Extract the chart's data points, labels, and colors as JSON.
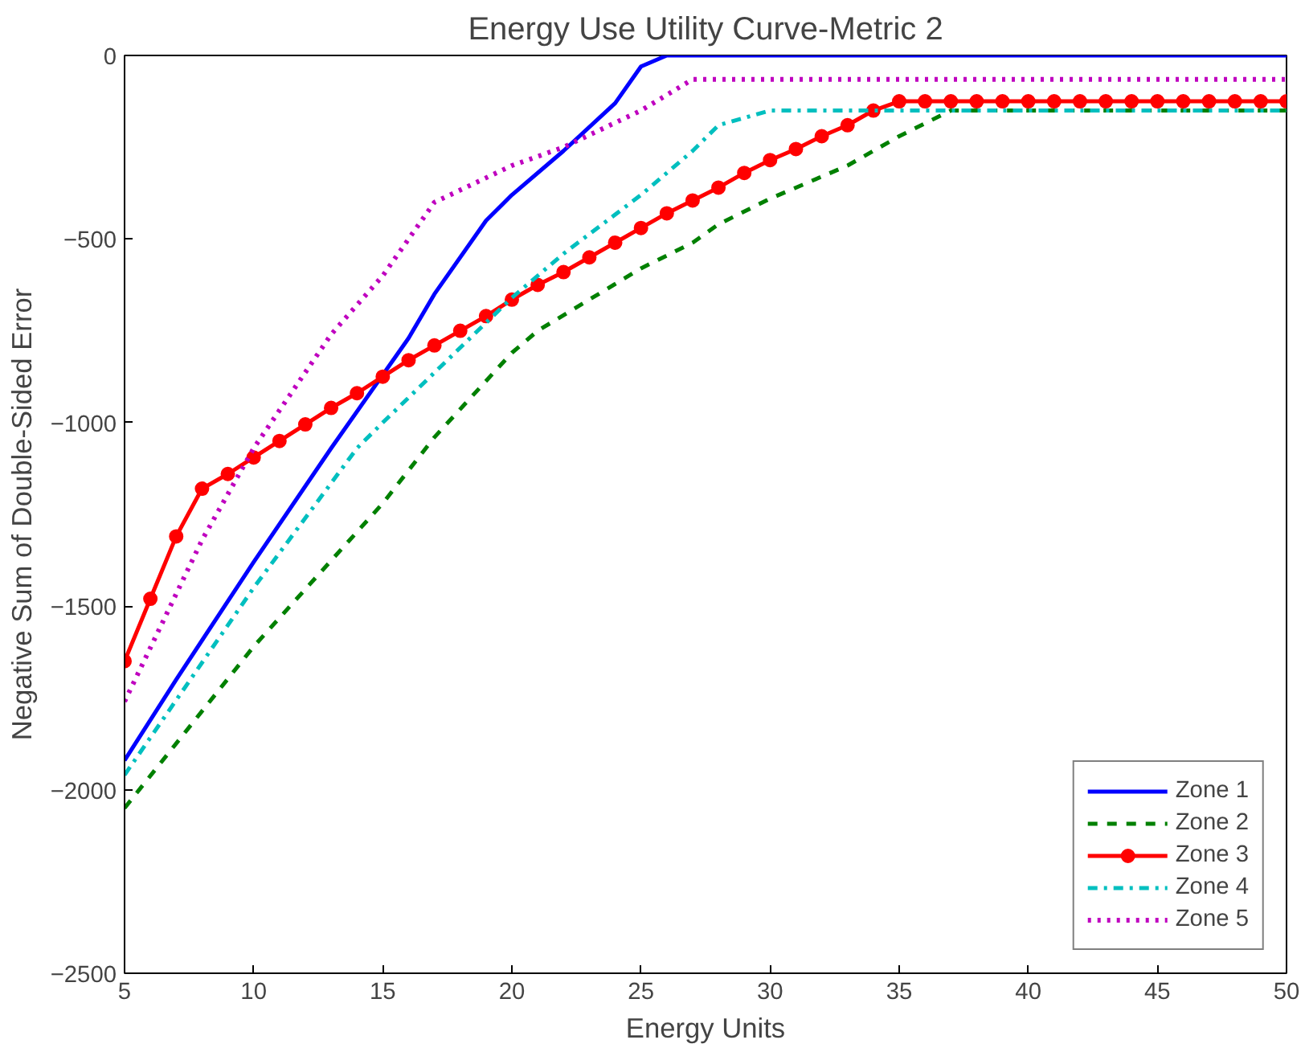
{
  "chart_data": {
    "type": "line",
    "title": "Energy Use Utility Curve-Metric 2",
    "xlabel": "Energy Units",
    "ylabel": "Negative Sum of Double-Sided Error",
    "xlim": [
      5,
      50
    ],
    "ylim": [
      -2500,
      0
    ],
    "xticks": [
      5,
      10,
      15,
      20,
      25,
      30,
      35,
      40,
      45,
      50
    ],
    "yticks": [
      -2500,
      -2000,
      -1500,
      -1000,
      -500,
      0
    ],
    "grid": false,
    "legend": "bottom right",
    "series": [
      {
        "name": "Zone 1",
        "color": "#0000ff",
        "line_style": "solid",
        "marker": "none",
        "x": [
          5,
          7,
          10,
          13,
          16,
          17,
          19,
          20,
          22,
          24,
          25,
          26,
          50
        ],
        "values": [
          -1920,
          -1700,
          -1380,
          -1070,
          -770,
          -650,
          -450,
          -380,
          -260,
          -130,
          -30,
          0,
          0
        ]
      },
      {
        "name": "Zone 2",
        "color": "#008000",
        "line_style": "dashed",
        "marker": "none",
        "x": [
          5,
          10,
          15,
          17,
          20,
          21,
          25,
          27,
          28,
          30,
          33,
          35,
          37,
          50
        ],
        "values": [
          -2050,
          -1610,
          -1220,
          -1040,
          -810,
          -750,
          -580,
          -510,
          -460,
          -390,
          -300,
          -220,
          -150,
          -150
        ]
      },
      {
        "name": "Zone 3",
        "color": "#ff0000",
        "line_style": "solid",
        "marker": "circle",
        "x": [
          5,
          6,
          7,
          8,
          9,
          10,
          11,
          12,
          13,
          14,
          15,
          16,
          17,
          18,
          19,
          20,
          21,
          22,
          23,
          24,
          25,
          26,
          27,
          28,
          29,
          30,
          31,
          32,
          33,
          34,
          35,
          36,
          37,
          38,
          39,
          40,
          41,
          42,
          43,
          44,
          45,
          46,
          47,
          48,
          49,
          50
        ],
        "values": [
          -1650,
          -1480,
          -1310,
          -1180,
          -1140,
          -1095,
          -1050,
          -1005,
          -960,
          -920,
          -875,
          -830,
          -790,
          -750,
          -710,
          -665,
          -625,
          -590,
          -550,
          -510,
          -470,
          -430,
          -395,
          -360,
          -320,
          -285,
          -255,
          -220,
          -190,
          -150,
          -125,
          -125,
          -125,
          -125,
          -125,
          -125,
          -125,
          -125,
          -125,
          -125,
          -125,
          -125,
          -125,
          -125,
          -125,
          -125
        ]
      },
      {
        "name": "Zone 4",
        "color": "#00bfbf",
        "line_style": "dashdot",
        "marker": "none",
        "x": [
          5,
          10,
          14,
          15,
          20,
          22,
          25,
          27,
          28,
          30,
          50
        ],
        "values": [
          -1960,
          -1450,
          -1070,
          -1000,
          -660,
          -540,
          -380,
          -260,
          -190,
          -150,
          -150
        ]
      },
      {
        "name": "Zone 5",
        "color": "#bf00bf",
        "line_style": "dotted",
        "marker": "none",
        "x": [
          5,
          8,
          10,
          13,
          15,
          17,
          20,
          22,
          25,
          27,
          50
        ],
        "values": [
          -1760,
          -1320,
          -1070,
          -760,
          -600,
          -400,
          -300,
          -250,
          -150,
          -65,
          -65
        ]
      }
    ]
  }
}
